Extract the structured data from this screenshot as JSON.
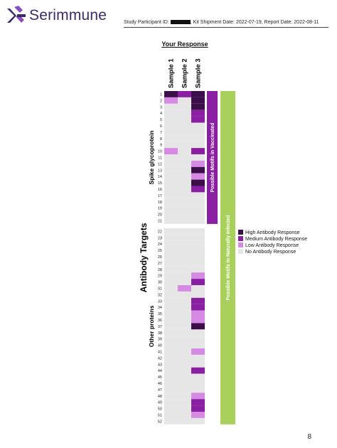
{
  "header": {
    "brand": "Serimmune",
    "participant_label": "Study Participant ID: ",
    "rest": ", Kit Shipment Date: 2022-07-19, Report Date: 2022-08-11"
  },
  "page_number": "8",
  "colors": {
    "High Antibody Response": "#3d0f4a",
    "Medium Antibody Response": "#8b1fa3",
    "Low Antibody Response": "#d68ae3",
    "No Antibody Response": "#e6e6e6",
    "vaccinated_bar": "#8b1fa3",
    "infected_bar": "#a8d05a"
  },
  "chart_data": {
    "type": "heatmap",
    "title": "Your Response",
    "ylabel": "Antibody Targets",
    "columns": [
      "Sample 1",
      "Sample 2",
      "Sample 3"
    ],
    "rows": [
      1,
      2,
      3,
      4,
      5,
      6,
      7,
      8,
      9,
      10,
      11,
      12,
      13,
      14,
      15,
      16,
      17,
      18,
      19,
      20,
      21,
      22,
      23,
      24,
      25,
      26,
      27,
      28,
      29,
      30,
      31,
      32,
      33,
      34,
      35,
      36,
      37,
      38,
      39,
      40,
      41,
      42,
      43,
      44,
      45,
      46,
      47,
      48,
      49,
      50,
      51,
      52
    ],
    "groups": [
      {
        "label": "Spike glycoprotein",
        "rows": [
          1,
          21
        ]
      },
      {
        "label": "Other proteins",
        "rows": [
          22,
          52
        ]
      }
    ],
    "levels": [
      "No Antibody Response",
      "Low Antibody Response",
      "Medium Antibody Response",
      "High Antibody Response"
    ],
    "values": [
      [
        3,
        2,
        3
      ],
      [
        1,
        0,
        3
      ],
      [
        0,
        0,
        3
      ],
      [
        0,
        0,
        2
      ],
      [
        0,
        0,
        2
      ],
      [
        0,
        0,
        0
      ],
      [
        0,
        0,
        0
      ],
      [
        0,
        0,
        0
      ],
      [
        0,
        0,
        0
      ],
      [
        1,
        0,
        2
      ],
      [
        0,
        0,
        0
      ],
      [
        0,
        0,
        1
      ],
      [
        0,
        0,
        3
      ],
      [
        0,
        0,
        1
      ],
      [
        0,
        0,
        3
      ],
      [
        0,
        0,
        2
      ],
      [
        0,
        0,
        0
      ],
      [
        0,
        0,
        0
      ],
      [
        0,
        0,
        0
      ],
      [
        0,
        0,
        0
      ],
      [
        0,
        0,
        0
      ],
      [
        0,
        0,
        0
      ],
      [
        0,
        0,
        0
      ],
      [
        0,
        0,
        0
      ],
      [
        0,
        0,
        0
      ],
      [
        0,
        0,
        0
      ],
      [
        0,
        0,
        0
      ],
      [
        0,
        0,
        0
      ],
      [
        0,
        0,
        1
      ],
      [
        0,
        0,
        2
      ],
      [
        0,
        1,
        0
      ],
      [
        0,
        0,
        0
      ],
      [
        0,
        0,
        2
      ],
      [
        0,
        0,
        2
      ],
      [
        0,
        0,
        1
      ],
      [
        0,
        0,
        1
      ],
      [
        0,
        0,
        3
      ],
      [
        0,
        0,
        0
      ],
      [
        0,
        0,
        0
      ],
      [
        0,
        0,
        0
      ],
      [
        0,
        0,
        1
      ],
      [
        0,
        0,
        0
      ],
      [
        0,
        0,
        0
      ],
      [
        0,
        0,
        2
      ],
      [
        0,
        0,
        0
      ],
      [
        0,
        0,
        0
      ],
      [
        0,
        0,
        0
      ],
      [
        0,
        0,
        1
      ],
      [
        0,
        0,
        2
      ],
      [
        0,
        0,
        2
      ],
      [
        0,
        0,
        1
      ],
      [
        0,
        0,
        0
      ]
    ],
    "annotations": [
      {
        "label": "Possible Motifs in Vaccinated",
        "rows": [
          1,
          21
        ]
      },
      {
        "label": "Possible Motifs in Naturally Infected",
        "rows": [
          1,
          52
        ]
      }
    ],
    "legend": [
      "High Antibody Response",
      "Medium Antibody Response",
      "Low Antibody Response",
      "No Antibody Response"
    ],
    "legend_position": "right"
  }
}
